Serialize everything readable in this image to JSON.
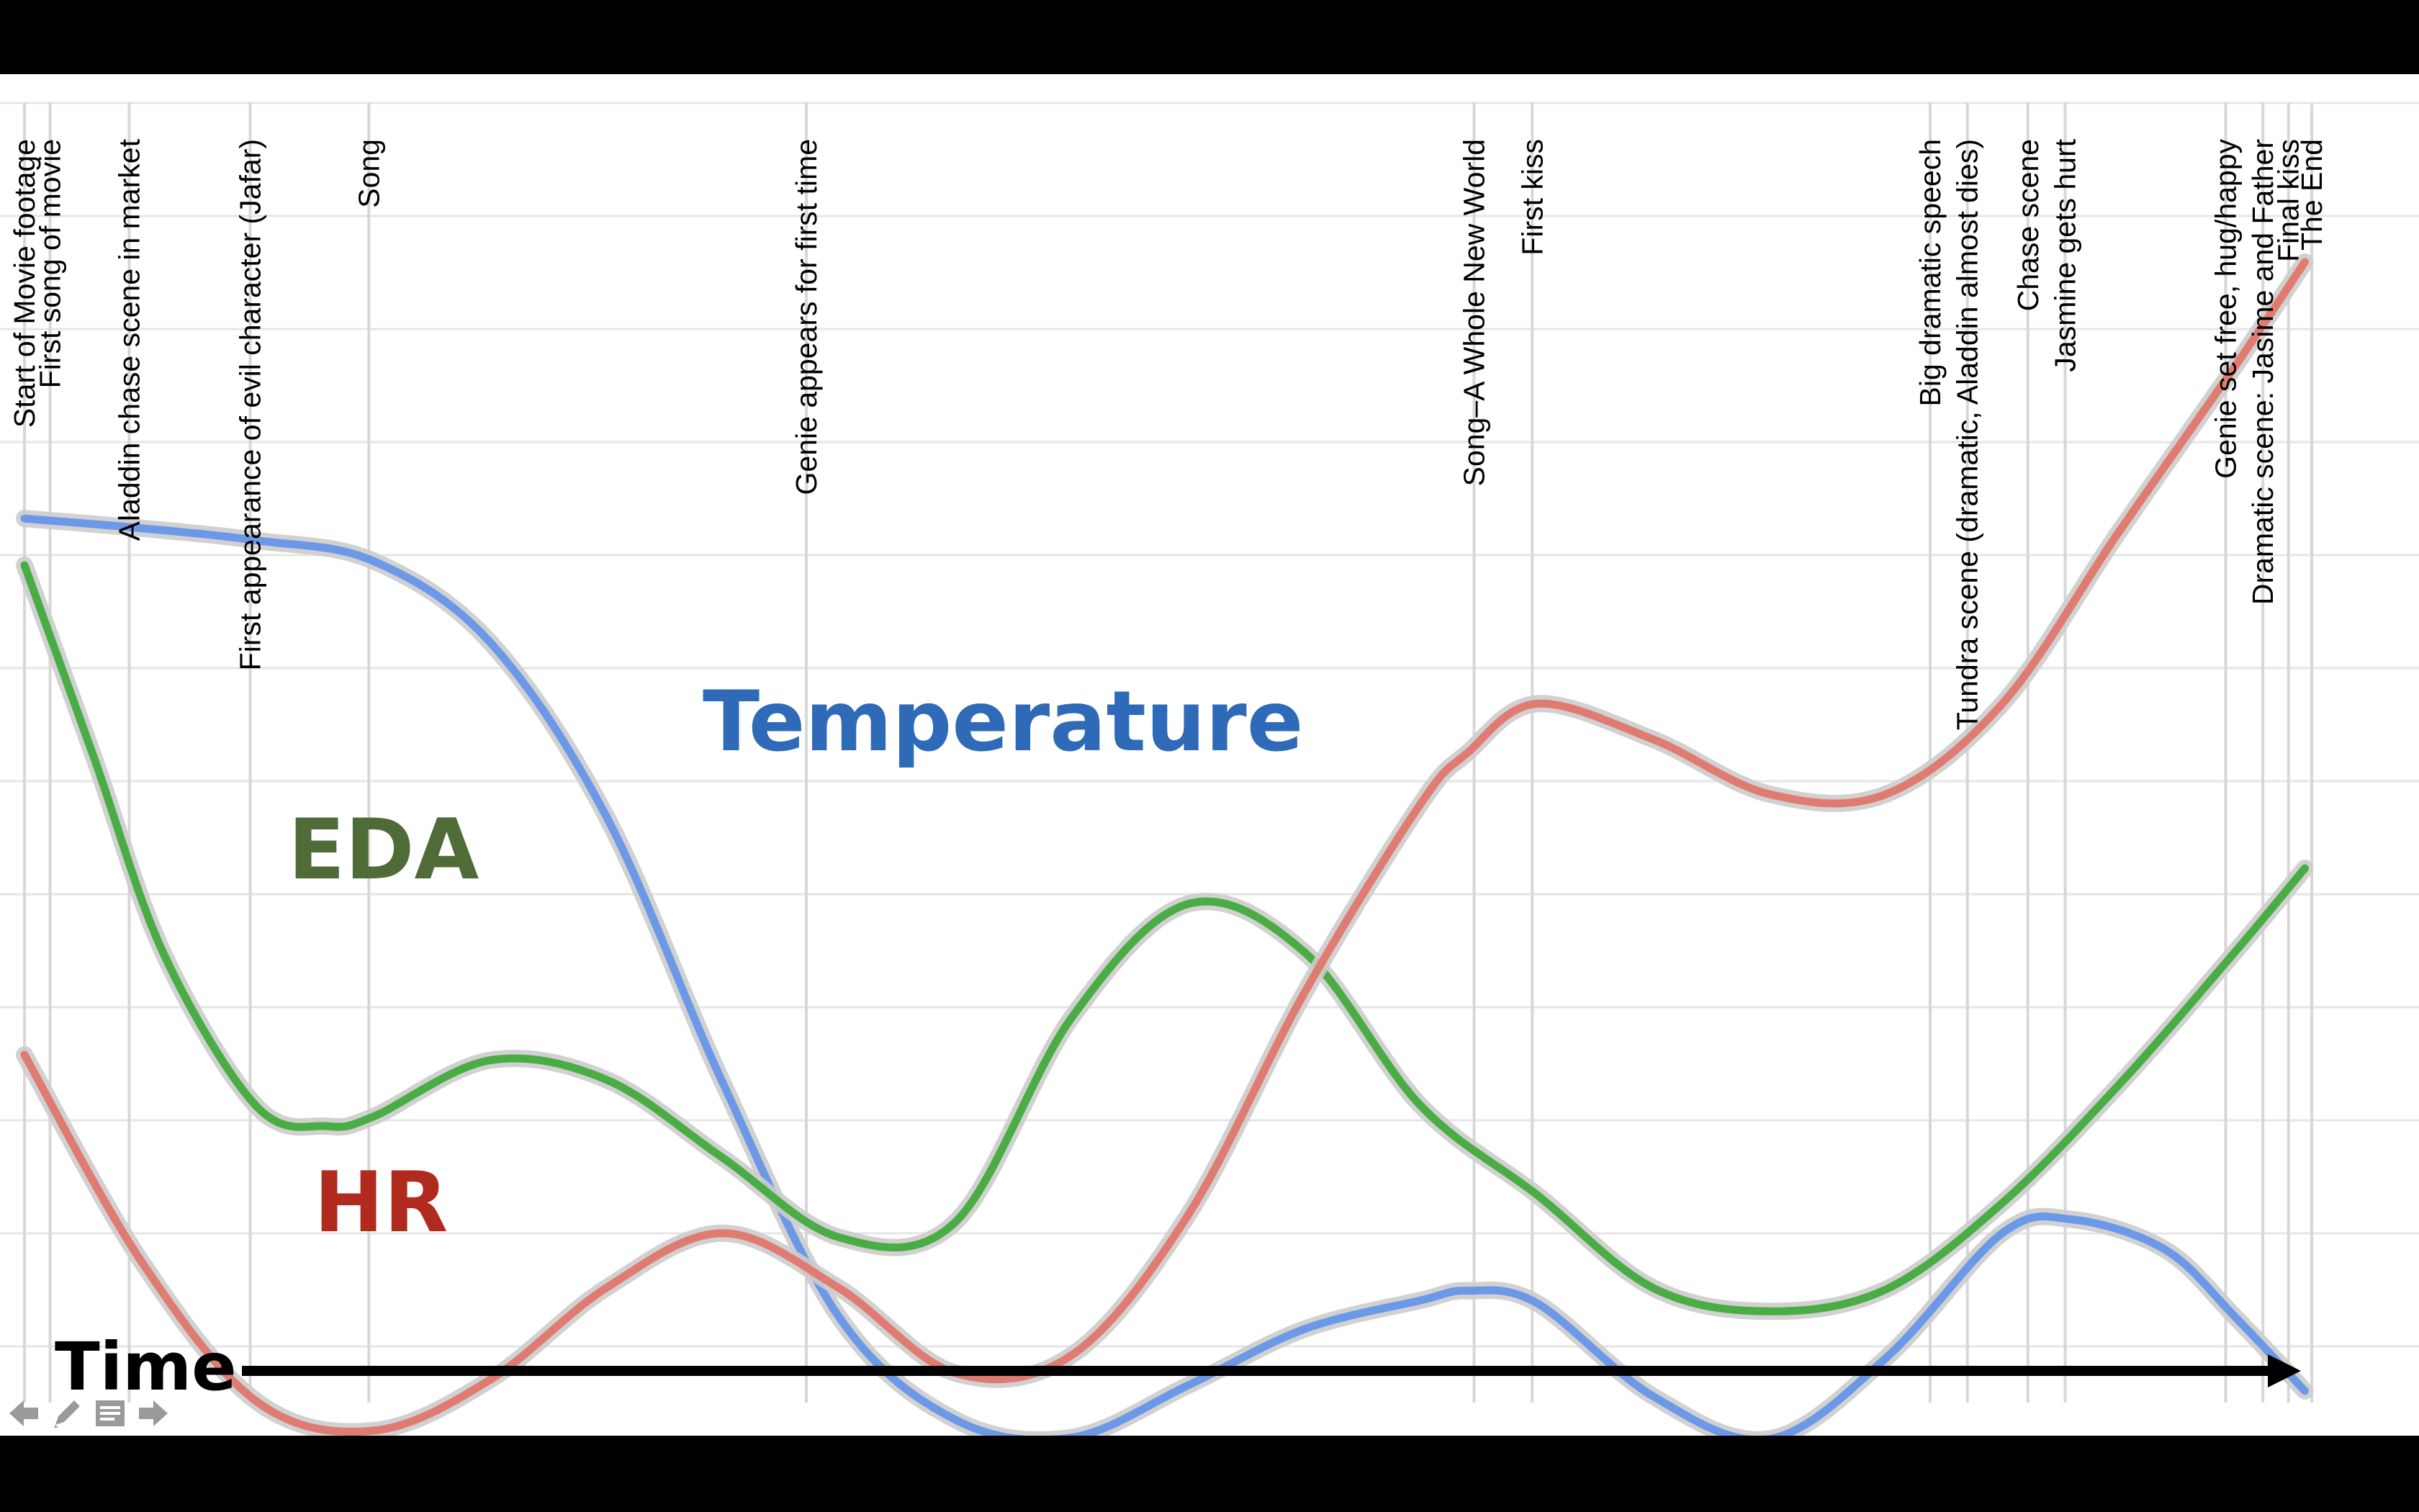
{
  "chart_data": {
    "type": "line",
    "title": "",
    "xlabel": "Time",
    "ylabel": "",
    "xlim": [
      0,
      100
    ],
    "ylim": [
      0,
      100
    ],
    "grid": true,
    "legend": "inline labels",
    "events": [
      {
        "x": 0.0,
        "label": "Start of Movie footage"
      },
      {
        "x": 1.1,
        "label": "First song of movie"
      },
      {
        "x": 4.5,
        "label": "Aladdin chase scene in market"
      },
      {
        "x": 9.7,
        "label": "First appearance of evil character (Jafar)"
      },
      {
        "x": 14.8,
        "label": "Song"
      },
      {
        "x": 33.6,
        "label": "Genie appears for first time"
      },
      {
        "x": 62.3,
        "label": "Song–A Whole New World"
      },
      {
        "x": 64.8,
        "label": "First kiss"
      },
      {
        "x": 81.9,
        "label": "Big dramatic speech"
      },
      {
        "x": 83.5,
        "label": "Tundra scene (dramatic, Aladdin almost dies)"
      },
      {
        "x": 86.1,
        "label": "Chase scene"
      },
      {
        "x": 87.7,
        "label": "Jasmine gets hurt"
      },
      {
        "x": 94.6,
        "label": "Genie set free, hug/happy"
      },
      {
        "x": 96.2,
        "label": "Dramatic scene: Jasime and Father"
      },
      {
        "x": 97.3,
        "label": "Final kiss"
      },
      {
        "x": 98.3,
        "label": "The End"
      }
    ],
    "series": [
      {
        "name": "Temperature",
        "color": "#6c98e8",
        "x": [
          0,
          5,
          10,
          15,
          20,
          25,
          30,
          35,
          40,
          45,
          50,
          55,
          60,
          62,
          65,
          70,
          75,
          80,
          85,
          88,
          92,
          95,
          98
        ],
        "y": [
          69.7,
          69,
          68.1,
          66.6,
          60.7,
          48,
          28.6,
          11.5,
          4,
          2.7,
          6.5,
          10.6,
          12.7,
          13.4,
          12.5,
          5.7,
          2.6,
          8.5,
          17.6,
          18.6,
          16.4,
          11.5,
          6.1
        ]
      },
      {
        "name": "EDA",
        "color": "#4aac44",
        "x": [
          0,
          3,
          6,
          10,
          13,
          15,
          20,
          25,
          30,
          35,
          40,
          45,
          50,
          55,
          60,
          65,
          70,
          75,
          80,
          85,
          90,
          95,
          98
        ],
        "y": [
          66.3,
          52.2,
          37.9,
          26.8,
          25.4,
          26.1,
          30.2,
          28.8,
          23.1,
          17.3,
          18.4,
          33.3,
          41.6,
          38.1,
          26.9,
          20.4,
          13.6,
          11.9,
          13.5,
          19.8,
          28.4,
          38.1,
          44.2
        ]
      },
      {
        "name": "HR",
        "color": "#e07b72",
        "x": [
          0,
          5,
          10,
          15,
          20,
          25,
          30,
          35,
          40,
          45,
          50,
          55,
          60,
          62,
          65,
          70,
          75,
          80,
          85,
          90,
          95,
          98
        ],
        "y": [
          30.6,
          15.6,
          5.3,
          3.2,
          6.9,
          13.6,
          17.6,
          13.6,
          7.4,
          8.7,
          18.9,
          35.1,
          48.9,
          52.6,
          56.2,
          53.6,
          49.6,
          49.6,
          56.2,
          68.7,
          80.8,
          88.4
        ]
      }
    ],
    "series_labels": {
      "temperature": "Temperature",
      "eda": "EDA",
      "hr": "HR"
    },
    "label_colors": {
      "temperature": "#2e6ab7",
      "eda": "#4e6b38",
      "hr": "#b02a1e"
    }
  },
  "nav": {
    "icons": [
      "arrow-left-icon",
      "pen-icon",
      "notes-icon",
      "arrow-right-icon"
    ],
    "color": "#9a9a9a"
  }
}
